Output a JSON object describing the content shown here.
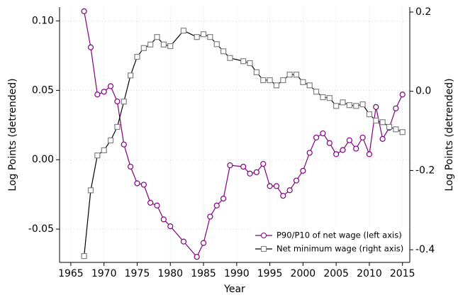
{
  "chart_data": {
    "type": "line",
    "x_label": "Year",
    "y_label": "Log Points (detrended)",
    "y2_label": "Log Points (detrended)",
    "x": [
      1967,
      1968,
      1969,
      1970,
      1971,
      1972,
      1973,
      1974,
      1975,
      1976,
      1977,
      1978,
      1979,
      1980,
      1982,
      1984,
      1985,
      1986,
      1987,
      1988,
      1989,
      1991,
      1992,
      1993,
      1994,
      1995,
      1996,
      1997,
      1998,
      1999,
      2000,
      2001,
      2002,
      2003,
      2004,
      2005,
      2006,
      2007,
      2008,
      2009,
      2010,
      2011,
      2012,
      2013,
      2014,
      2015
    ],
    "series": [
      {
        "name": "P90/P10 of net wage (left axis)",
        "color": "#800080",
        "marker": "circle",
        "marker_color": "#800080",
        "values": [
          0.107,
          0.081,
          0.047,
          0.049,
          0.053,
          0.042,
          0.011,
          -0.005,
          -0.017,
          -0.018,
          -0.031,
          -0.033,
          -0.043,
          -0.048,
          -0.059,
          -0.07,
          -0.06,
          -0.041,
          -0.033,
          -0.028,
          -0.004,
          -0.005,
          -0.01,
          -0.009,
          -0.003,
          -0.019,
          -0.019,
          -0.026,
          -0.022,
          -0.015,
          -0.008,
          0.005,
          0.016,
          0.019,
          0.012,
          0.004,
          0.007,
          0.014,
          0.008,
          0.016,
          0.004,
          0.038,
          0.015,
          0.023,
          0.037,
          0.047
        ]
      },
      {
        "name": "Net minimum wage (right axis)",
        "color": "#000000",
        "marker": "square",
        "marker_color": "#808080",
        "axis": "y2",
        "values": [
          -0.416,
          -0.25,
          -0.162,
          -0.149,
          -0.124,
          -0.09,
          -0.026,
          0.04,
          0.087,
          0.109,
          0.118,
          0.137,
          0.118,
          0.114,
          0.153,
          0.137,
          0.144,
          0.137,
          0.119,
          0.101,
          0.084,
          0.076,
          0.071,
          0.048,
          0.028,
          0.028,
          0.015,
          0.028,
          0.042,
          0.042,
          0.023,
          0.015,
          -0.001,
          -0.015,
          -0.017,
          -0.037,
          -0.028,
          -0.035,
          -0.037,
          -0.033,
          -0.058,
          -0.074,
          -0.078,
          -0.09,
          -0.096,
          -0.103
        ]
      }
    ],
    "xlim": [
      1963.3,
      2016.1
    ],
    "xticks": [
      1965,
      1970,
      1975,
      1980,
      1985,
      1990,
      1995,
      2000,
      2005,
      2010,
      2015
    ],
    "ylim": [
      -0.074,
      0.11
    ],
    "yticks": [
      {
        "value": 0.1,
        "label": "0.10"
      },
      0.05,
      {
        "value": 0,
        "label": "0.00"
      },
      -0.05
    ],
    "y2lim": [
      -0.432,
      0.2125
    ],
    "y2ticks": [
      0.2,
      {
        "value": 0,
        "label": "0.0"
      },
      -0.2,
      -0.4
    ],
    "grid": true,
    "legend": "lower right"
  }
}
